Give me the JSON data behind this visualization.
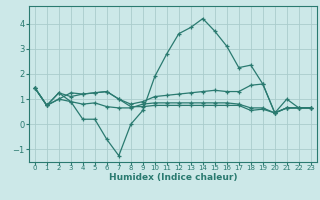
{
  "xlabel": "Humidex (Indice chaleur)",
  "ylabel": "",
  "xlim": [
    -0.5,
    23.5
  ],
  "ylim": [
    -1.5,
    4.7
  ],
  "yticks": [
    -1,
    0,
    1,
    2,
    3,
    4
  ],
  "xticks": [
    0,
    1,
    2,
    3,
    4,
    5,
    6,
    7,
    8,
    9,
    10,
    11,
    12,
    13,
    14,
    15,
    16,
    17,
    18,
    19,
    20,
    21,
    22,
    23
  ],
  "bg_color": "#cce8e8",
  "grid_color": "#aacccc",
  "line_color": "#2a7a70",
  "series": [
    [
      1.45,
      0.75,
      1.25,
      0.9,
      0.2,
      0.2,
      -0.6,
      -1.25,
      0.0,
      0.55,
      1.9,
      2.8,
      3.6,
      3.85,
      4.2,
      3.7,
      3.1,
      2.25,
      2.35,
      1.6,
      0.45,
      1.0,
      0.65,
      0.65
    ],
    [
      1.45,
      0.75,
      1.25,
      1.1,
      1.2,
      1.25,
      1.3,
      1.0,
      0.8,
      0.9,
      1.1,
      1.15,
      1.2,
      1.25,
      1.3,
      1.35,
      1.3,
      1.3,
      1.55,
      1.6,
      0.45,
      0.65,
      0.65,
      0.65
    ],
    [
      1.45,
      0.75,
      1.0,
      0.9,
      0.8,
      0.85,
      0.7,
      0.65,
      0.65,
      0.8,
      0.85,
      0.85,
      0.85,
      0.85,
      0.85,
      0.85,
      0.85,
      0.8,
      0.65,
      0.65,
      0.45,
      0.65,
      0.65,
      0.65
    ],
    [
      1.45,
      0.75,
      1.0,
      1.25,
      1.2,
      1.25,
      1.3,
      1.0,
      0.7,
      0.7,
      0.75,
      0.75,
      0.75,
      0.75,
      0.75,
      0.75,
      0.75,
      0.75,
      0.55,
      0.6,
      0.45,
      0.65,
      0.65,
      0.65
    ]
  ]
}
